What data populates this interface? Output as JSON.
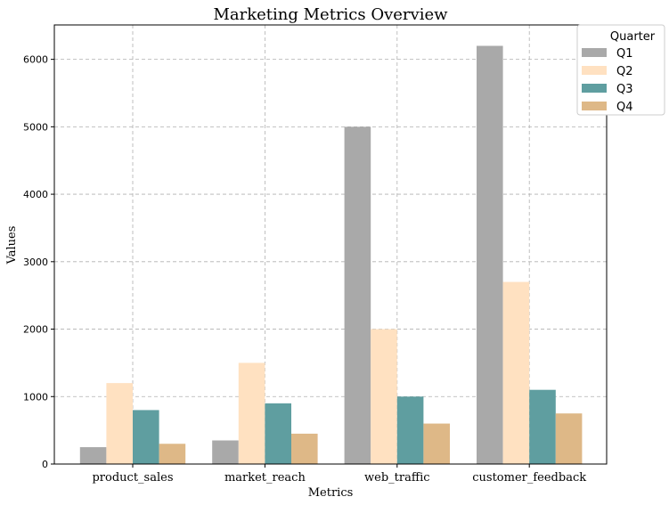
{
  "chart_data": {
    "type": "bar",
    "title": "Marketing Metrics Overview",
    "xlabel": "Metrics",
    "ylabel": "Values",
    "categories": [
      "product_sales",
      "market_reach",
      "web_traffic",
      "customer_feedback"
    ],
    "series": [
      {
        "name": "Q1",
        "values": [
          250,
          350,
          5000,
          6200
        ],
        "color": "#a9a9a9"
      },
      {
        "name": "Q2",
        "values": [
          1200,
          1500,
          2000,
          2700
        ],
        "color": "#ffe1c1"
      },
      {
        "name": "Q3",
        "values": [
          800,
          900,
          1000,
          1100
        ],
        "color": "#5f9ea0"
      },
      {
        "name": "Q4",
        "values": [
          300,
          450,
          600,
          750
        ],
        "color": "#deb887"
      }
    ],
    "ylim": [
      0,
      6510
    ],
    "yticks": [
      0,
      1000,
      2000,
      3000,
      4000,
      5000,
      6000
    ],
    "grid": true,
    "legend": {
      "title": "Quarter",
      "placement": "top-right"
    }
  }
}
